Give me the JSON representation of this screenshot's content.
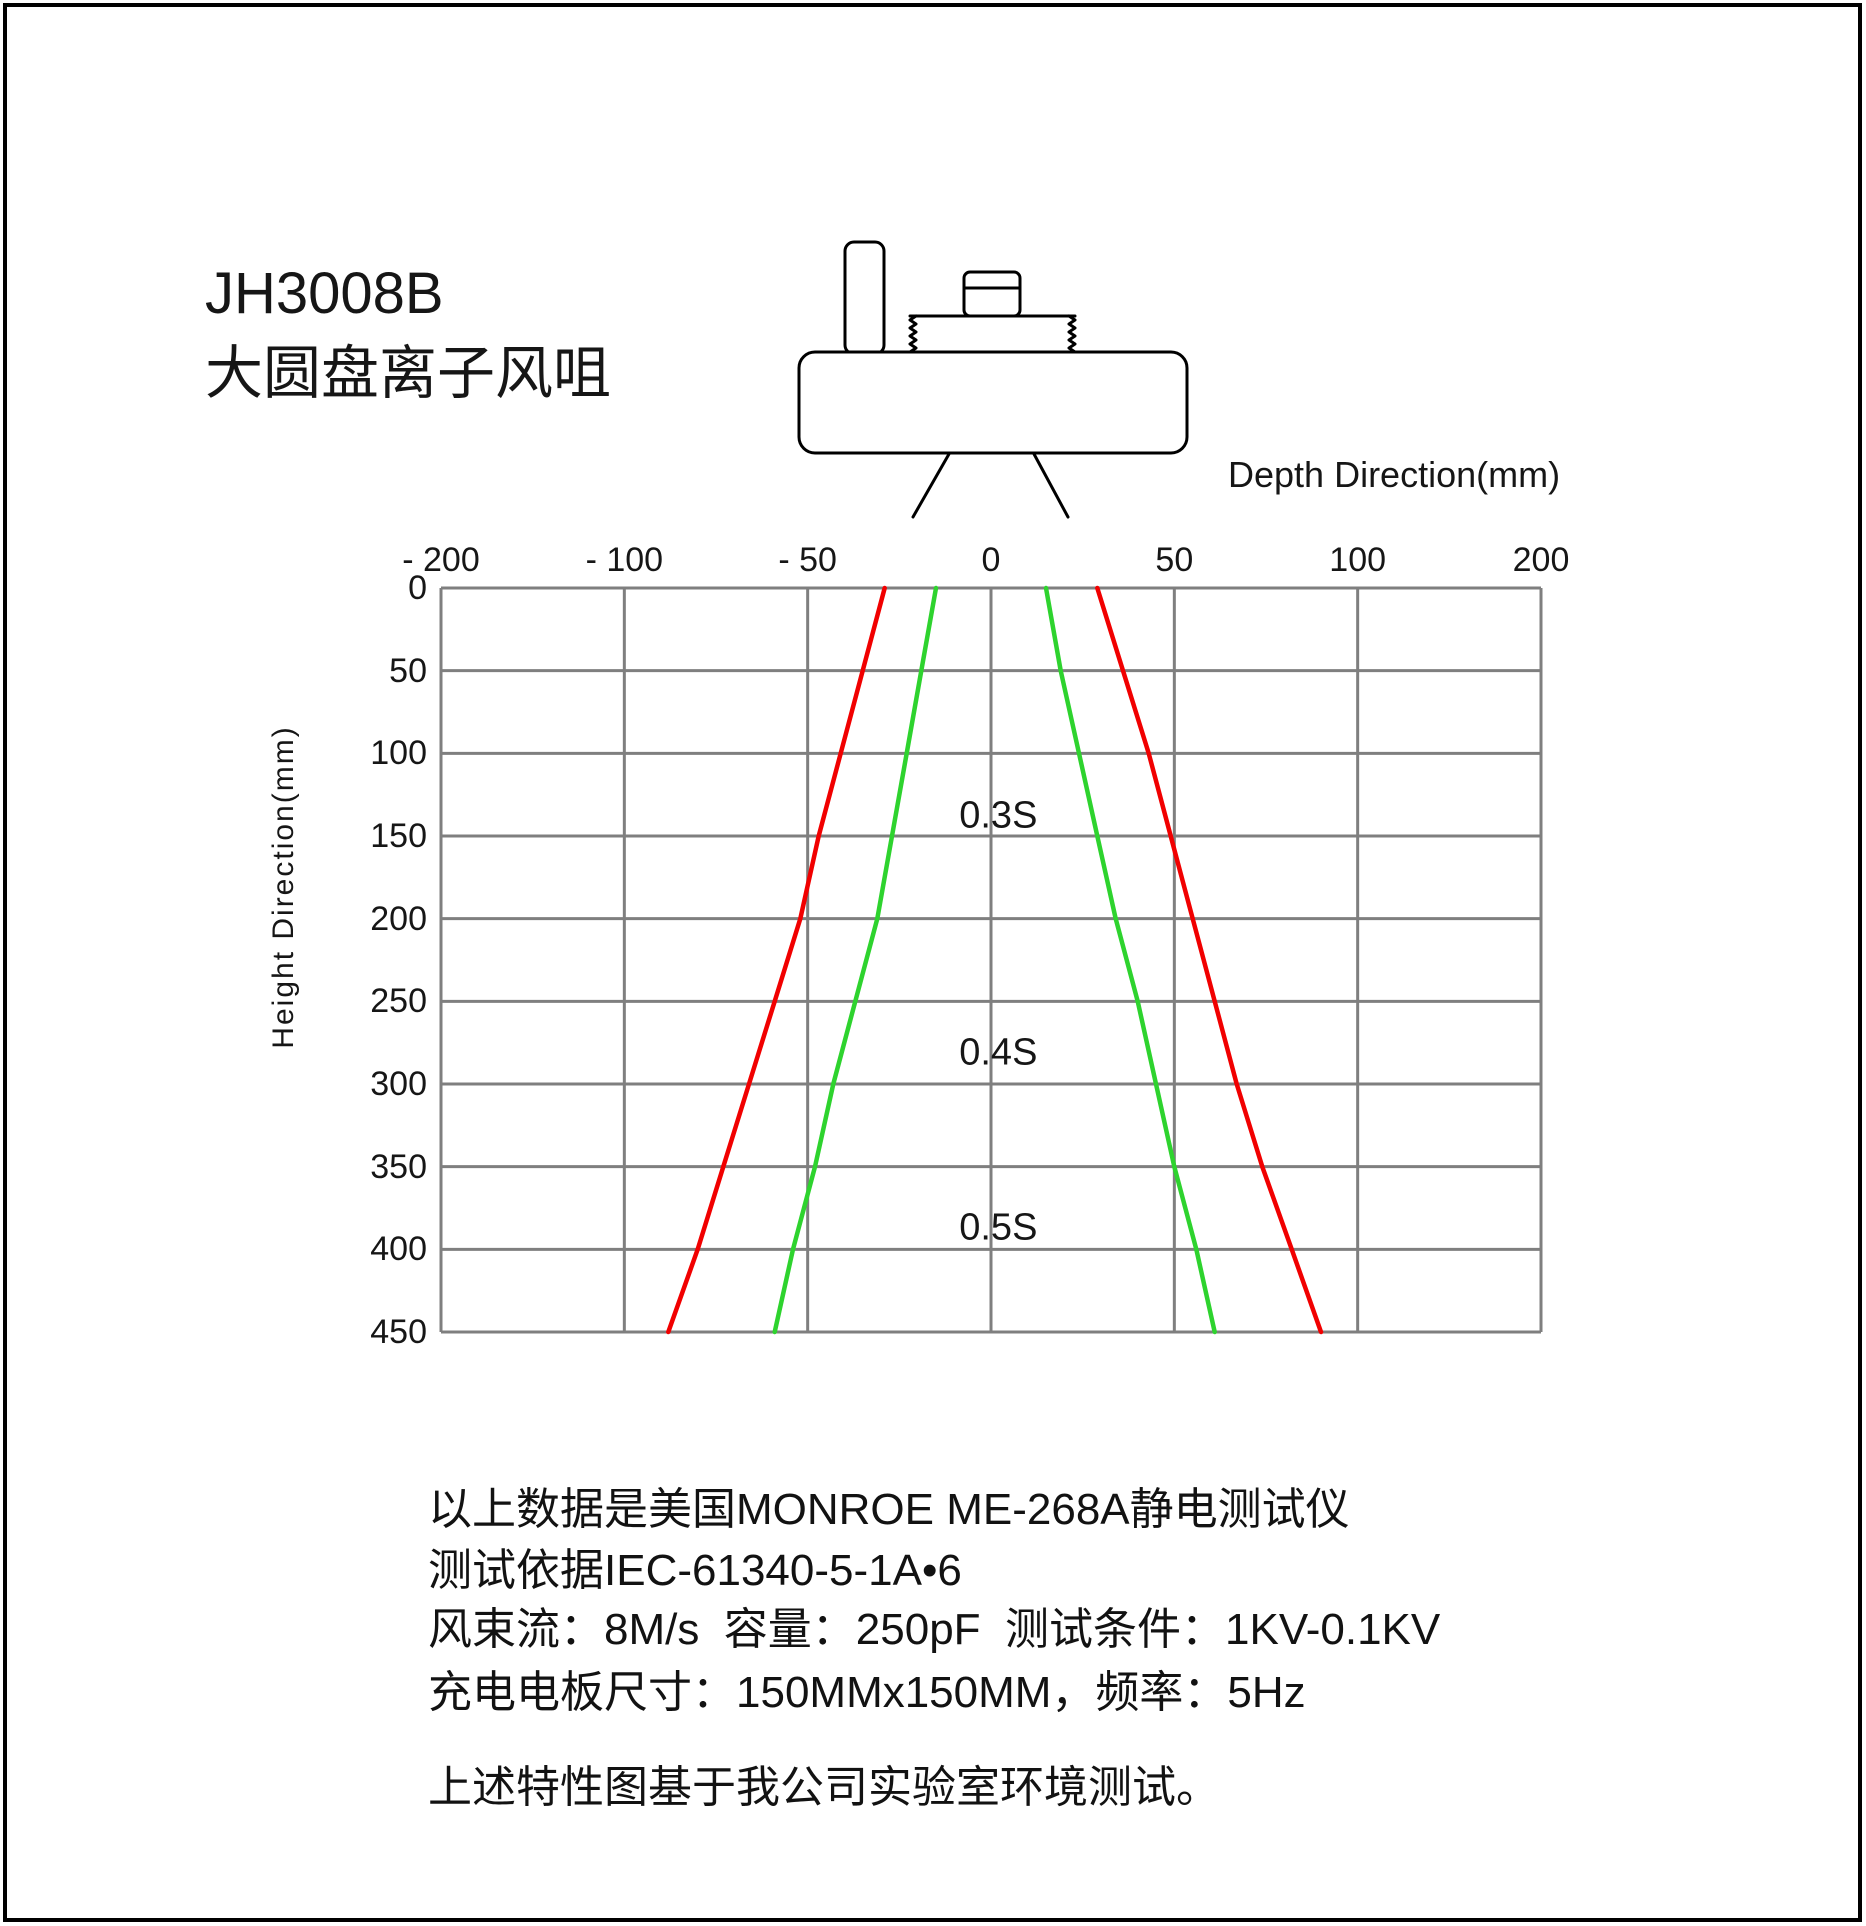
{
  "title": {
    "line1": "JH3008B",
    "line2": "大圆盘离子风咀"
  },
  "chart_data": {
    "type": "line",
    "title": "",
    "x_axis": {
      "label": "Depth Direction(mm)",
      "tick_labels": [
        "- 200",
        "- 100",
        "- 50",
        "0",
        "50",
        "100",
        "200"
      ],
      "tick_values": [
        -200,
        -100,
        -50,
        0,
        50,
        100,
        200
      ],
      "scale": "piecewise-linear-even-tick-spacing"
    },
    "y_axis": {
      "label": "Height Direction(mm)",
      "tick_labels": [
        "0",
        "50",
        "100",
        "150",
        "200",
        "250",
        "300",
        "350",
        "400",
        "450"
      ],
      "tick_values": [
        0,
        50,
        100,
        150,
        200,
        250,
        300,
        350,
        400,
        450
      ],
      "range": [
        0,
        450
      ],
      "inverted": true
    },
    "grid": true,
    "grid_color": "#7f7f7f",
    "legend": "none",
    "annotations": [
      {
        "label": "0.3S",
        "x": 2,
        "y": 138
      },
      {
        "label": "0.4S",
        "x": 2,
        "y": 281
      },
      {
        "label": "0.5S",
        "x": 2,
        "y": 387
      }
    ],
    "series": [
      {
        "name": "red-left-boundary",
        "color": "#f10000",
        "points": [
          [
            -29,
            0
          ],
          [
            -35,
            50
          ],
          [
            -41,
            100
          ],
          [
            -47,
            150
          ],
          [
            -52,
            200
          ],
          [
            -59,
            250
          ],
          [
            -66,
            300
          ],
          [
            -73,
            350
          ],
          [
            -80,
            400
          ],
          [
            -88,
            450
          ]
        ]
      },
      {
        "name": "green-left-boundary",
        "color": "#2ed32e",
        "points": [
          [
            -15,
            0
          ],
          [
            -19,
            50
          ],
          [
            -23,
            100
          ],
          [
            -27,
            150
          ],
          [
            -31,
            200
          ],
          [
            -37,
            250
          ],
          [
            -43,
            300
          ],
          [
            -48,
            350
          ],
          [
            -54,
            400
          ],
          [
            -59,
            450
          ]
        ]
      },
      {
        "name": "green-right-boundary",
        "color": "#2ed32e",
        "points": [
          [
            15,
            0
          ],
          [
            19,
            50
          ],
          [
            24,
            100
          ],
          [
            29,
            150
          ],
          [
            34,
            200
          ],
          [
            40,
            250
          ],
          [
            45,
            300
          ],
          [
            50,
            350
          ],
          [
            56,
            400
          ],
          [
            61,
            450
          ]
        ]
      },
      {
        "name": "red-right-boundary",
        "color": "#f10000",
        "points": [
          [
            29,
            0
          ],
          [
            36,
            50
          ],
          [
            43,
            100
          ],
          [
            49,
            150
          ],
          [
            55,
            200
          ],
          [
            61,
            250
          ],
          [
            67,
            300
          ],
          [
            74,
            350
          ],
          [
            82,
            400
          ],
          [
            90,
            450
          ]
        ]
      }
    ]
  },
  "notes": {
    "line1": "以上数据是美国MONROE ME-268A静电测试仪",
    "line2": "测试依据IEC-61340-5-1A•6",
    "line3": "风束流：8M/s  容量：250pF  测试条件：1KV-0.1KV",
    "line4": "充电电板尺寸：150MMx150MM，频率：5Hz",
    "footer": "上述特性图基于我公司实验室环境测试。"
  }
}
